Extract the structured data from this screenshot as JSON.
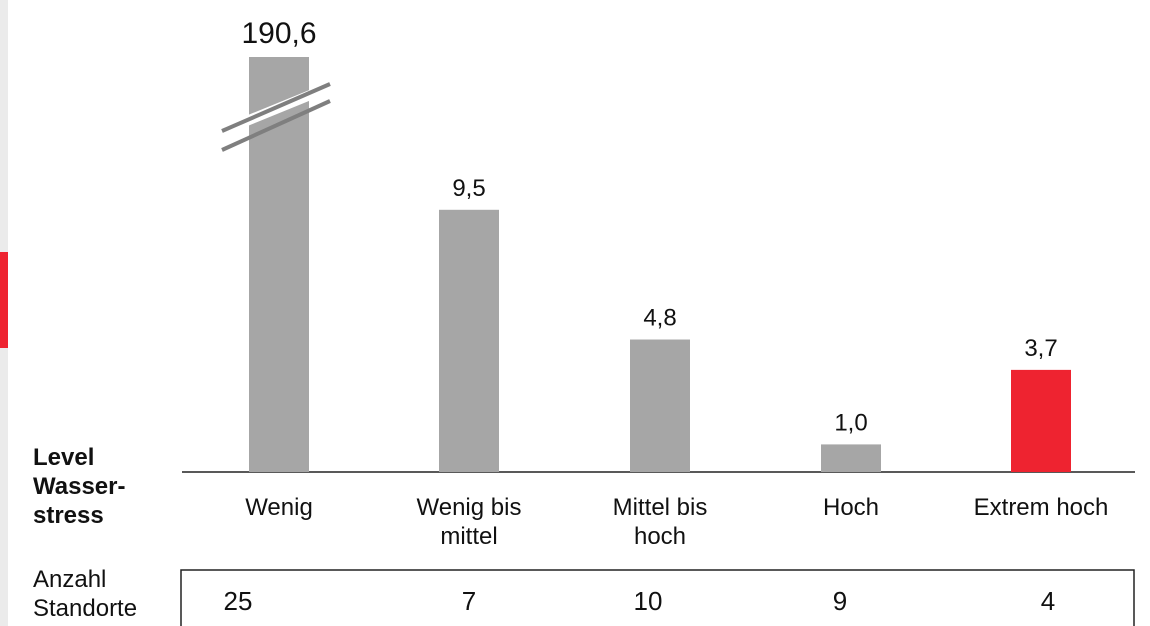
{
  "accent_color": "#ee2330",
  "bar_color": "#a6a6a6",
  "row_labels": {
    "level": "Level\nWasser-\nstress",
    "count": "Anzahl\nStandorte"
  },
  "chart_data": {
    "type": "bar",
    "categories": [
      "Wenig",
      "Wenig bis\nmittel",
      "Mittel bis\nhoch",
      "Hoch",
      "Extrem hoch"
    ],
    "values": [
      190.6,
      9.5,
      4.8,
      1.0,
      3.7
    ],
    "value_labels": [
      "190,6",
      "9,5",
      "4,8",
      "1,0",
      "3,7"
    ],
    "highlight_index": 4,
    "axis_break_on": "Wenig",
    "counts": [
      "25",
      "7",
      "10",
      "9",
      "4"
    ],
    "title": "",
    "xlabel": "",
    "ylabel": ""
  }
}
